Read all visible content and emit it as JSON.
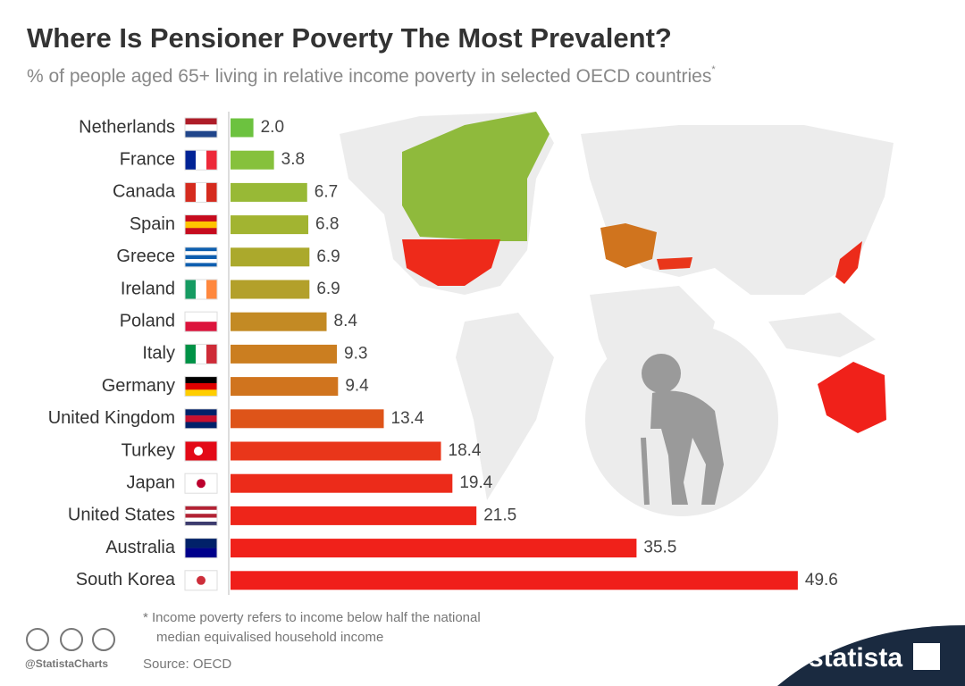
{
  "chart_data": {
    "type": "bar",
    "orientation": "horizontal",
    "title": "Where Is Pensioner Poverty The Most Prevalent?",
    "subtitle": "% of people aged 65+ living in relative income poverty in selected OECD countries",
    "subtitle_mark": "*",
    "categories": [
      "Netherlands",
      "France",
      "Canada",
      "Spain",
      "Greece",
      "Ireland",
      "Poland",
      "Italy",
      "Germany",
      "United Kingdom",
      "Turkey",
      "Japan",
      "United States",
      "Australia",
      "South Korea"
    ],
    "values": [
      2.0,
      3.8,
      6.7,
      6.8,
      6.9,
      6.9,
      8.4,
      9.3,
      9.4,
      13.4,
      18.4,
      19.4,
      21.5,
      35.5,
      49.6
    ],
    "value_labels": [
      "2.0",
      "3.8",
      "6.7",
      "6.8",
      "6.9",
      "6.9",
      "8.4",
      "9.3",
      "9.4",
      "13.4",
      "18.4",
      "19.4",
      "21.5",
      "35.5",
      "49.6"
    ],
    "colors": [
      "#6cc23f",
      "#86c13c",
      "#98b936",
      "#a2b431",
      "#aba92c",
      "#b3a02a",
      "#c38a24",
      "#cb7e20",
      "#d0741e",
      "#de5419",
      "#e9361a",
      "#ec2b1a",
      "#ee251a",
      "#f0211a",
      "#f01e1a"
    ],
    "footnote": [
      "* Income poverty refers to income below half the national",
      "median equivalised household income"
    ],
    "source": "Source: OECD",
    "handle": "@StatistaCharts",
    "brand": "statista"
  }
}
